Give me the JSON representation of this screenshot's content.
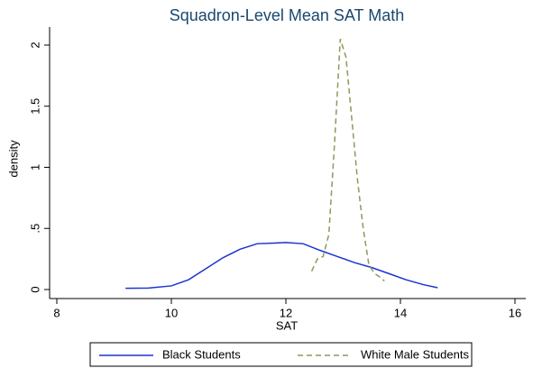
{
  "chart_data": {
    "type": "line",
    "title": "Squadron-Level Mean SAT Math",
    "xlabel": "SAT",
    "ylabel": "density",
    "xlim": [
      8,
      16
    ],
    "xticks": [
      8,
      10,
      12,
      14,
      16
    ],
    "ylim": [
      0,
      2
    ],
    "yticks": [
      0,
      {
        "value": 0.5,
        "label": ".5"
      },
      1,
      1.5,
      2
    ],
    "grid": false,
    "legend": "bottom",
    "series": [
      {
        "name": "Black Students",
        "color": "#1a35d0",
        "linestyle": "solid",
        "x": [
          9.2,
          9.6,
          10,
          10.3,
          10.6,
          10.9,
          11.2,
          11.5,
          11.8,
          12.0,
          12.3,
          12.6,
          12.9,
          13.2,
          13.5,
          13.8,
          14.1,
          14.4,
          14.65
        ],
        "values": [
          0.01,
          0.012,
          0.03,
          0.08,
          0.17,
          0.26,
          0.33,
          0.375,
          0.38,
          0.385,
          0.375,
          0.32,
          0.27,
          0.22,
          0.18,
          0.13,
          0.08,
          0.04,
          0.015
        ]
      },
      {
        "name": "White Male Students",
        "color": "#8a9a5b",
        "linestyle": "dashed",
        "x": [
          12.45,
          12.55,
          12.65,
          12.75,
          12.85,
          12.95,
          13.05,
          13.15,
          13.25,
          13.35,
          13.45,
          13.55,
          13.65,
          13.72
        ],
        "values": [
          0.15,
          0.25,
          0.27,
          0.45,
          1.2,
          2.05,
          1.9,
          1.4,
          0.9,
          0.5,
          0.2,
          0.13,
          0.1,
          0.07
        ]
      }
    ]
  }
}
